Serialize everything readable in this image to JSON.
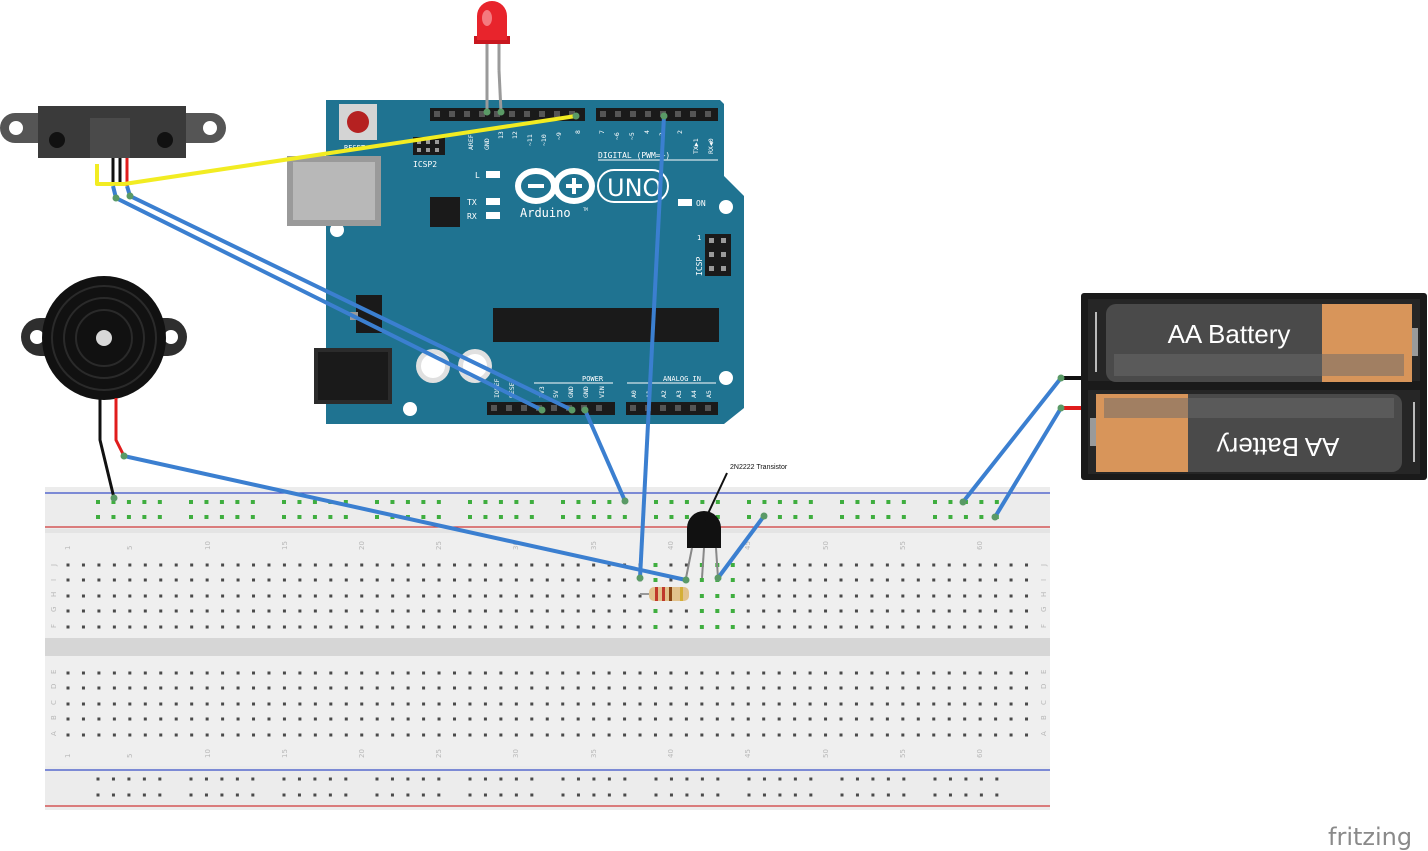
{
  "arduino": {
    "brand": "Arduino",
    "model": "UNO",
    "tm": "TM",
    "reset": "RESET",
    "icsp2": "ICSP2",
    "icsp": "ICSP",
    "icsp_pin1": "1",
    "digital_label": "DIGITAL (PWM=~)",
    "power_label": "POWER",
    "analog_label": "ANALOG IN",
    "on_label": "ON",
    "l_label": "L",
    "tx_label": "TX",
    "rx_label": "RX",
    "aref": "AREF",
    "gnd_top": "GND",
    "pin13": "13",
    "pin12": "12",
    "pin11": "~11",
    "pin10": "~10",
    "pin9": "~9",
    "pin8": "8",
    "pin7": "7",
    "pin6": "~6",
    "pin5": "~5",
    "pin4": "4",
    "pin3": "~3",
    "pin2": "2",
    "pin1": "TX▶1",
    "pin0": "RX◀0",
    "ioref": "IOREF",
    "rst": "RESET",
    "v33": "3V3",
    "v5": "5V",
    "gnd1": "GND",
    "gnd2": "GND",
    "vin": "VIN",
    "a0": "A0",
    "a1": "A1",
    "a2": "A2",
    "a3": "A3",
    "a4": "A4",
    "a5": "A5"
  },
  "battery": {
    "top_label": "AA Battery",
    "bottom_label": "AA Battery"
  },
  "transistor": {
    "label": "2N2222 Transistor"
  },
  "breadboard": {
    "col_numbers": [
      "1",
      "5",
      "10",
      "15",
      "20",
      "25",
      "30",
      "35",
      "40",
      "45",
      "50",
      "55",
      "60"
    ],
    "rows_top": [
      "J",
      "I",
      "H",
      "G",
      "F"
    ],
    "rows_bottom": [
      "E",
      "D",
      "C",
      "B",
      "A"
    ]
  },
  "logo": {
    "text": "fritzing"
  },
  "colors": {
    "board": "#1f7391",
    "wire_blue": "#3b7fd0",
    "wire_yellow": "#f2ec22",
    "led": "#e8242c"
  }
}
